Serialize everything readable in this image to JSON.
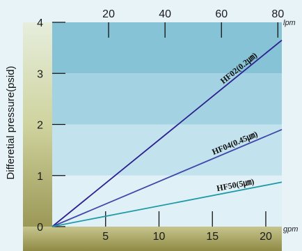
{
  "chart_data": {
    "type": "line",
    "title": "",
    "ylabel": "Differetial pressure(psid)",
    "ylim": [
      0,
      4
    ],
    "y_ticks": [
      "0",
      "1",
      "2",
      "3",
      "4"
    ],
    "x_bottom": {
      "unit": "gpm",
      "lim": [
        0,
        21.5
      ],
      "ticks": [
        5,
        10,
        15,
        20
      ],
      "tick_labels": [
        "5",
        "10",
        "15",
        "20"
      ]
    },
    "x_top": {
      "unit": "lpm",
      "lim": [
        0,
        81.4
      ],
      "ticks": [
        20,
        40,
        60,
        80
      ],
      "tick_labels": [
        "20",
        "40",
        "60",
        "80"
      ]
    },
    "series": [
      {
        "name": "HF02(0.2㎛)",
        "color": "#2c1f8f",
        "x": [
          0,
          21.5
        ],
        "y": [
          0,
          3.65
        ]
      },
      {
        "name": "HF04(0.45㎛)",
        "color": "#3f48a8",
        "x": [
          0,
          21.5
        ],
        "y": [
          0,
          1.9
        ]
      },
      {
        "name": "HF50(5㎛)",
        "color": "#1f9aa6",
        "x": [
          0,
          21.5
        ],
        "y": [
          0,
          0.87
        ]
      }
    ],
    "bands": [
      {
        "from": 3,
        "to": 4,
        "color": "#86c3d6"
      },
      {
        "from": 2,
        "to": 3,
        "color": "#a3d2e2"
      },
      {
        "from": 1,
        "to": 2,
        "color": "#c2e2ee"
      },
      {
        "from": 0,
        "to": 1,
        "color": "#e0f0f7"
      }
    ],
    "grid": false
  }
}
